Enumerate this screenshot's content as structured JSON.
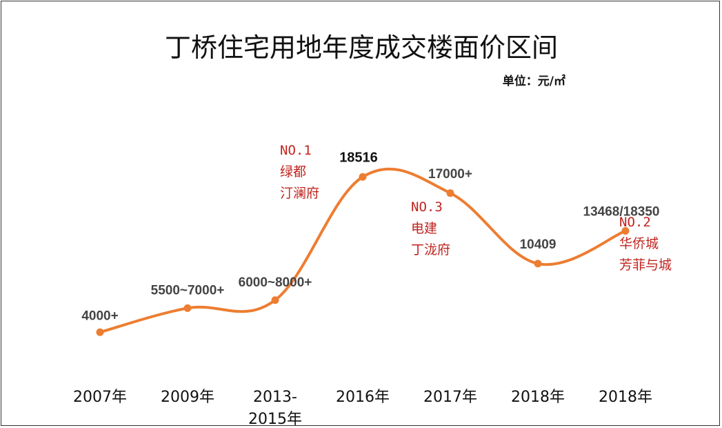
{
  "chart_data": {
    "type": "line",
    "title": "丁桥住宅用地年度成交楼面价区间",
    "unit_label": "单位：元/㎡",
    "categories": [
      "2007年",
      "2009年",
      "2013-2015年",
      "2016年",
      "2017年",
      "2018年",
      "2018年"
    ],
    "category_lines": [
      [
        "2007年"
      ],
      [
        "2009年"
      ],
      [
        "2013-",
        "2015年"
      ],
      [
        "2016年"
      ],
      [
        "2017年"
      ],
      [
        "2018年"
      ],
      [
        "2018年"
      ]
    ],
    "values": [
      4000,
      6250,
      7000,
      18516,
      17000,
      10409,
      13468
    ],
    "data_labels": [
      "4000+",
      "5500~7000+",
      "6000~8000+",
      "18516",
      "17000+",
      "10409",
      "13468/18350"
    ],
    "ylim": [
      1500,
      21000
    ],
    "line_color": "#ed7d31",
    "annotations": [
      {
        "point_index": 2,
        "lines": [
          "NO.1",
          "绿都",
          "汀澜府"
        ]
      },
      {
        "point_index": 4,
        "lines": [
          "NO.3",
          "电建",
          "丁泷府"
        ]
      },
      {
        "point_index": 6,
        "lines": [
          "NO.2",
          "华侨城",
          "芳菲与城"
        ]
      }
    ],
    "annotation_color": "#c0241f"
  }
}
